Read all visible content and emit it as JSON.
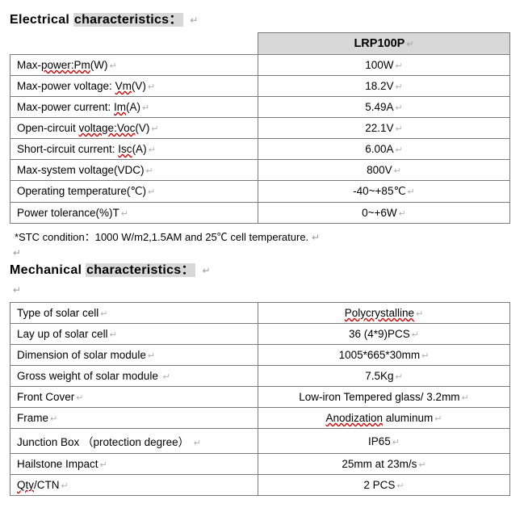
{
  "section1": {
    "title_plain": "Electrical ",
    "title_highlight": "characteristics：",
    "model_header": "LRP100P",
    "rows": [
      {
        "label_parts": [
          {
            "t": "Max-"
          },
          {
            "t": "power:Pm",
            "u": true
          },
          {
            "t": "(W)"
          }
        ],
        "value": "100W"
      },
      {
        "label_parts": [
          {
            "t": "Max-power voltage: "
          },
          {
            "t": "Vm",
            "u": true
          },
          {
            "t": "(V)"
          }
        ],
        "value": "18.2V"
      },
      {
        "label_parts": [
          {
            "t": "Max-power current: "
          },
          {
            "t": "Im",
            "u": true
          },
          {
            "t": "(A)"
          }
        ],
        "value": "5.49A"
      },
      {
        "label_parts": [
          {
            "t": "Open-circuit "
          },
          {
            "t": "voltage:Voc",
            "u": true
          },
          {
            "t": "(V)"
          }
        ],
        "value": "22.1V"
      },
      {
        "label_parts": [
          {
            "t": "Short-circuit current: "
          },
          {
            "t": "Isc",
            "u": true
          },
          {
            "t": "(A)"
          }
        ],
        "value": "6.00A"
      },
      {
        "label_parts": [
          {
            "t": "Max-system voltage(VDC)"
          }
        ],
        "value": "800V"
      },
      {
        "label_parts": [
          {
            "t": "Operating temperature(℃)"
          }
        ],
        "value": "-40~+85℃"
      },
      {
        "label_parts": [
          {
            "t": "Power tolerance(%)T"
          }
        ],
        "value": "0~+6W"
      }
    ],
    "footnote": "*STC condition：1000 W/m2,1.5AM and 25℃  cell temperature."
  },
  "section2": {
    "title_plain": "Mechanical ",
    "title_highlight": "characteristics：",
    "rows": [
      {
        "label_parts": [
          {
            "t": "Type of solar cell"
          }
        ],
        "value_parts": [
          {
            "t": "Polycrystalline",
            "u": true
          }
        ]
      },
      {
        "label_parts": [
          {
            "t": "Lay up of solar cell"
          }
        ],
        "value_parts": [
          {
            "t": "36 (4*9)PCS"
          }
        ]
      },
      {
        "label_parts": [
          {
            "t": "Dimension of solar module"
          }
        ],
        "value_parts": [
          {
            "t": "1005*665*30mm"
          }
        ]
      },
      {
        "label_parts": [
          {
            "t": "Gross weight of solar module  "
          }
        ],
        "value_parts": [
          {
            "t": "7.5Kg"
          }
        ]
      },
      {
        "label_parts": [
          {
            "t": "Front Cover"
          }
        ],
        "value_parts": [
          {
            "t": "Low-iron Tempered glass/ 3.2mm"
          }
        ]
      },
      {
        "label_parts": [
          {
            "t": "Frame"
          }
        ],
        "value_parts": [
          {
            "t": "Anodization",
            "u": true
          },
          {
            "t": " aluminum"
          }
        ]
      },
      {
        "label_parts": [
          {
            "t": "Junction Box  （protection degree） "
          }
        ],
        "value_parts": [
          {
            "t": "IP65"
          }
        ]
      },
      {
        "label_parts": [
          {
            "t": "Hailstone Impact"
          }
        ],
        "value_parts": [
          {
            "t": "25mm at 23m/s"
          }
        ]
      },
      {
        "label_parts": [
          {
            "t": "Qty",
            "u": true
          },
          {
            "t": "/CTN"
          }
        ],
        "value_parts": [
          {
            "t": "2 PCS"
          }
        ]
      }
    ]
  },
  "marks": {
    "para_symbol": "↵",
    "cell_symbol": "↵"
  },
  "style": {
    "border_color": "#7b7b7b",
    "header_bg": "#d8d8d8",
    "wave_color": "#d00000",
    "font_family": "Arial"
  }
}
